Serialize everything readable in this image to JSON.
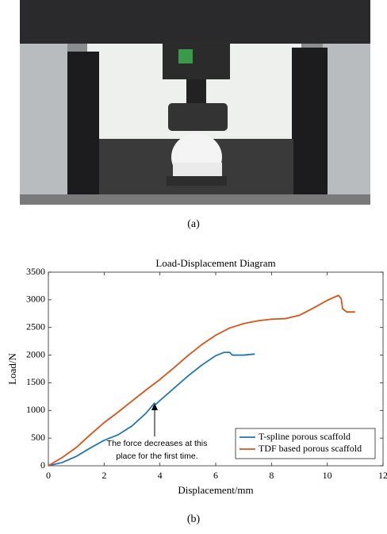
{
  "captions": [
    "(a)",
    "(b)"
  ],
  "chart_data": {
    "type": "line",
    "title": "Load-Displacement Diagram",
    "x_label": "Displacement/mm",
    "y_label": "Load/N",
    "xlim": [
      0,
      12
    ],
    "xticks": [
      0,
      2,
      4,
      6,
      8,
      10,
      12
    ],
    "ylim": [
      0,
      3500
    ],
    "yticks": [
      0,
      500,
      1000,
      1500,
      2000,
      2500,
      3000,
      3500
    ],
    "grid": false,
    "legend": "lower right",
    "annotation": [
      "The force decreases at this",
      "place for the first time."
    ],
    "series": [
      {
        "name": "T-spline porous scaffold",
        "color": "#1f77b4",
        "x": [
          0,
          0.5,
          1,
          1.5,
          2,
          2.5,
          3,
          3.5,
          3.8,
          3.85,
          4,
          4.5,
          5,
          5.5,
          6,
          6.3,
          6.5,
          6.6,
          7,
          7.4
        ],
        "values": [
          0,
          60,
          170,
          320,
          460,
          560,
          720,
          950,
          1130,
          1110,
          1180,
          1400,
          1620,
          1820,
          1990,
          2050,
          2050,
          2000,
          2000,
          2020
        ]
      },
      {
        "name": "TDF based porous scaffold",
        "color": "#d95319",
        "x": [
          0,
          0.5,
          1,
          1.5,
          2,
          2.5,
          3,
          3.5,
          4,
          4.5,
          5,
          5.5,
          6,
          6.5,
          7,
          7.5,
          8,
          8.5,
          9,
          9.5,
          10,
          10.4,
          10.5,
          10.55,
          10.7,
          11
        ],
        "values": [
          0,
          150,
          330,
          560,
          780,
          970,
          1170,
          1370,
          1560,
          1770,
          1990,
          2190,
          2360,
          2490,
          2570,
          2620,
          2650,
          2660,
          2720,
          2850,
          2990,
          3080,
          3020,
          2840,
          2780,
          2780
        ]
      }
    ]
  }
}
